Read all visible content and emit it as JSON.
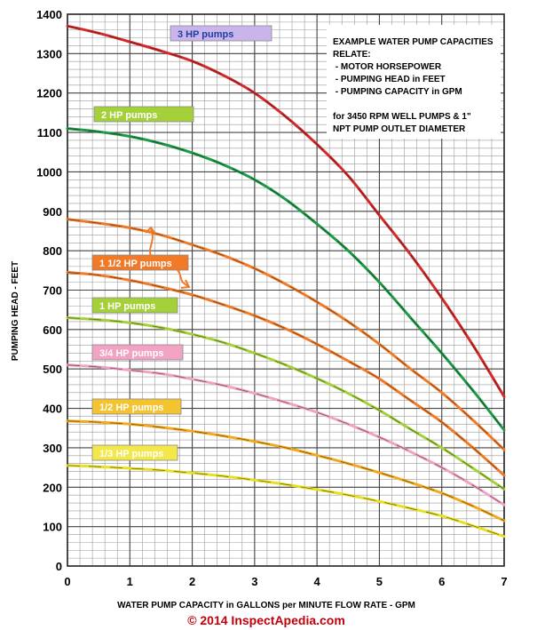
{
  "chart_data": {
    "type": "line",
    "xlabel": "WATER PUMP CAPACITY in GALLONS per MINUTE FLOW RATE - GPM",
    "ylabel": "PUMPING HEAD - FEET",
    "xlim": [
      0,
      7
    ],
    "ylim": [
      0,
      1400
    ],
    "x_ticks": [
      "0",
      "1",
      "2",
      "3",
      "4",
      "5",
      "6",
      "7"
    ],
    "y_ticks": [
      "0",
      "100",
      "200",
      "300",
      "400",
      "500",
      "600",
      "700",
      "800",
      "900",
      "1000",
      "1100",
      "1200",
      "1300",
      "1400"
    ],
    "grid": true,
    "x": [
      0,
      0.5,
      1,
      1.5,
      2,
      2.5,
      3,
      3.5,
      4,
      4.5,
      5,
      5.5,
      6,
      6.5,
      7
    ],
    "series": [
      {
        "name": "3 HP pumps",
        "color": "#d42a2a",
        "values": [
          1370,
          1352,
          1330,
          1307,
          1281,
          1245,
          1200,
          1140,
          1070,
          990,
          890,
          790,
          680,
          560,
          430
        ]
      },
      {
        "name": "2 HP pumps",
        "color": "#1e9a46",
        "values": [
          1110,
          1102,
          1090,
          1072,
          1048,
          1018,
          980,
          930,
          868,
          800,
          720,
          630,
          540,
          445,
          345
        ]
      },
      {
        "name": "1 1/2 HP pumps",
        "color": "#f07a28",
        "values": [
          880,
          870,
          858,
          840,
          815,
          788,
          755,
          715,
          670,
          620,
          563,
          500,
          440,
          370,
          295
        ]
      },
      {
        "name": "1 1/2 HP pumps",
        "color": "#f07a28",
        "values": [
          745,
          738,
          725,
          708,
          688,
          663,
          635,
          602,
          563,
          520,
          475,
          420,
          365,
          300,
          230
        ]
      },
      {
        "name": "1 HP pumps",
        "color": "#a4d13a",
        "values": [
          630,
          625,
          617,
          605,
          588,
          567,
          540,
          510,
          476,
          438,
          395,
          347,
          300,
          248,
          195
        ]
      },
      {
        "name": "3/4 HP pumps",
        "color": "#f2a2c2",
        "values": [
          510,
          505,
          497,
          488,
          474,
          458,
          438,
          415,
          390,
          360,
          327,
          290,
          250,
          205,
          155
        ]
      },
      {
        "name": "1/2 HP pumps",
        "color": "#f4a81a",
        "values": [
          368,
          365,
          360,
          352,
          342,
          330,
          316,
          300,
          281,
          260,
          237,
          212,
          185,
          152,
          115
        ]
      },
      {
        "name": "1/3 HP pumps",
        "color": "#e8e020",
        "values": [
          255,
          252,
          248,
          243,
          236,
          228,
          218,
          207,
          194,
          180,
          164,
          146,
          127,
          102,
          75
        ]
      }
    ],
    "series_labels": [
      {
        "text": "3 HP pumps",
        "bg": "#c9b4ec"
      },
      {
        "text": "2 HP pumps",
        "bg": "#a4d13a"
      },
      {
        "text": "1 1/2 HP pumps",
        "bg": "#f07a28"
      },
      {
        "text": "1  HP pumps",
        "bg": "#a4d13a"
      },
      {
        "text": "3/4 HP pumps",
        "bg": "#f2a2c2"
      },
      {
        "text": "1/2 HP pumps",
        "bg": "#f4c430"
      },
      {
        "text": "1/3 HP pumps",
        "bg": "#f2e84a"
      }
    ],
    "annotation": {
      "lines": [
        "EXAMPLE WATER PUMP CAPACITIES",
        "RELATE:",
        " - MOTOR HORSEPOWER",
        " - PUMPING HEAD in FEET",
        " - PUMPING CAPACITY in GPM",
        "",
        "for 3450 RPM WELL PUMPS & 1\"",
        "NPT PUMP OUTLET DIAMETER"
      ]
    },
    "copyright": "© 2014 InspectApedia.com"
  }
}
